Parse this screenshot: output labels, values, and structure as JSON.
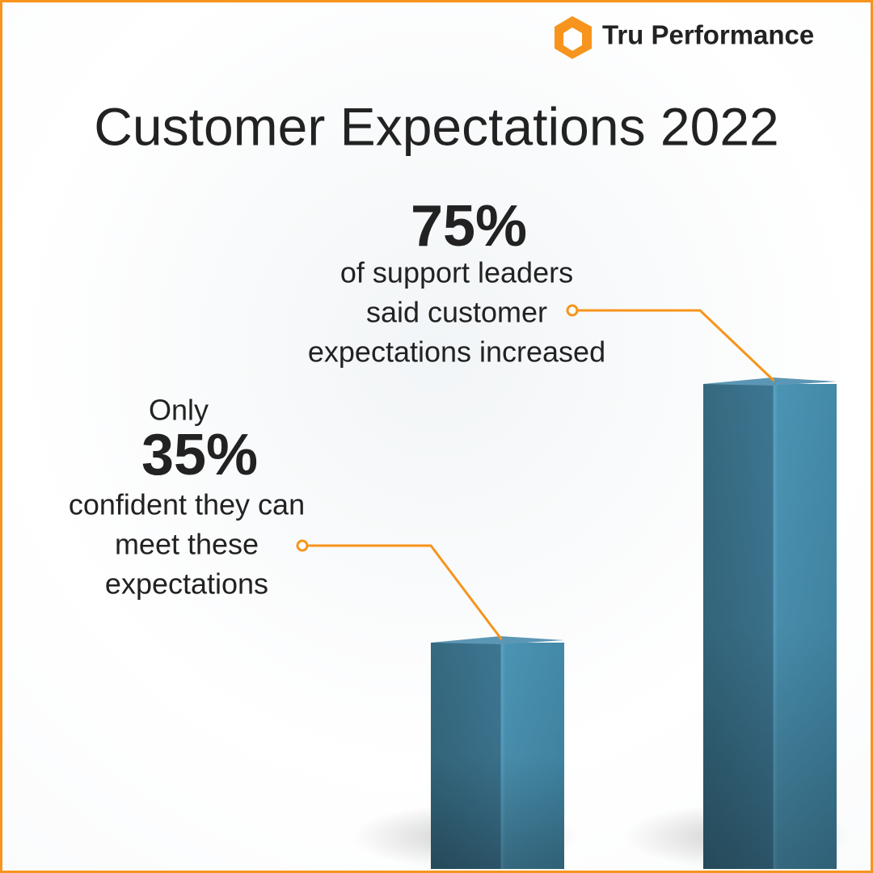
{
  "chart_data": {
    "type": "bar",
    "brand": "Tru Performance",
    "title": "Customer Expectations 2022",
    "categories": [
      null,
      null
    ],
    "values": [
      35,
      75
    ],
    "value_labels": [
      "35%",
      "75%"
    ],
    "color": "#3f7f9c",
    "accent_color": "#f7941d",
    "annotations": [
      {
        "before": "Only",
        "after": [
          "confident they can",
          "meet these",
          "expectations"
        ]
      },
      {
        "after": [
          "of support leaders",
          "said customer",
          "expectations increased"
        ]
      }
    ]
  }
}
